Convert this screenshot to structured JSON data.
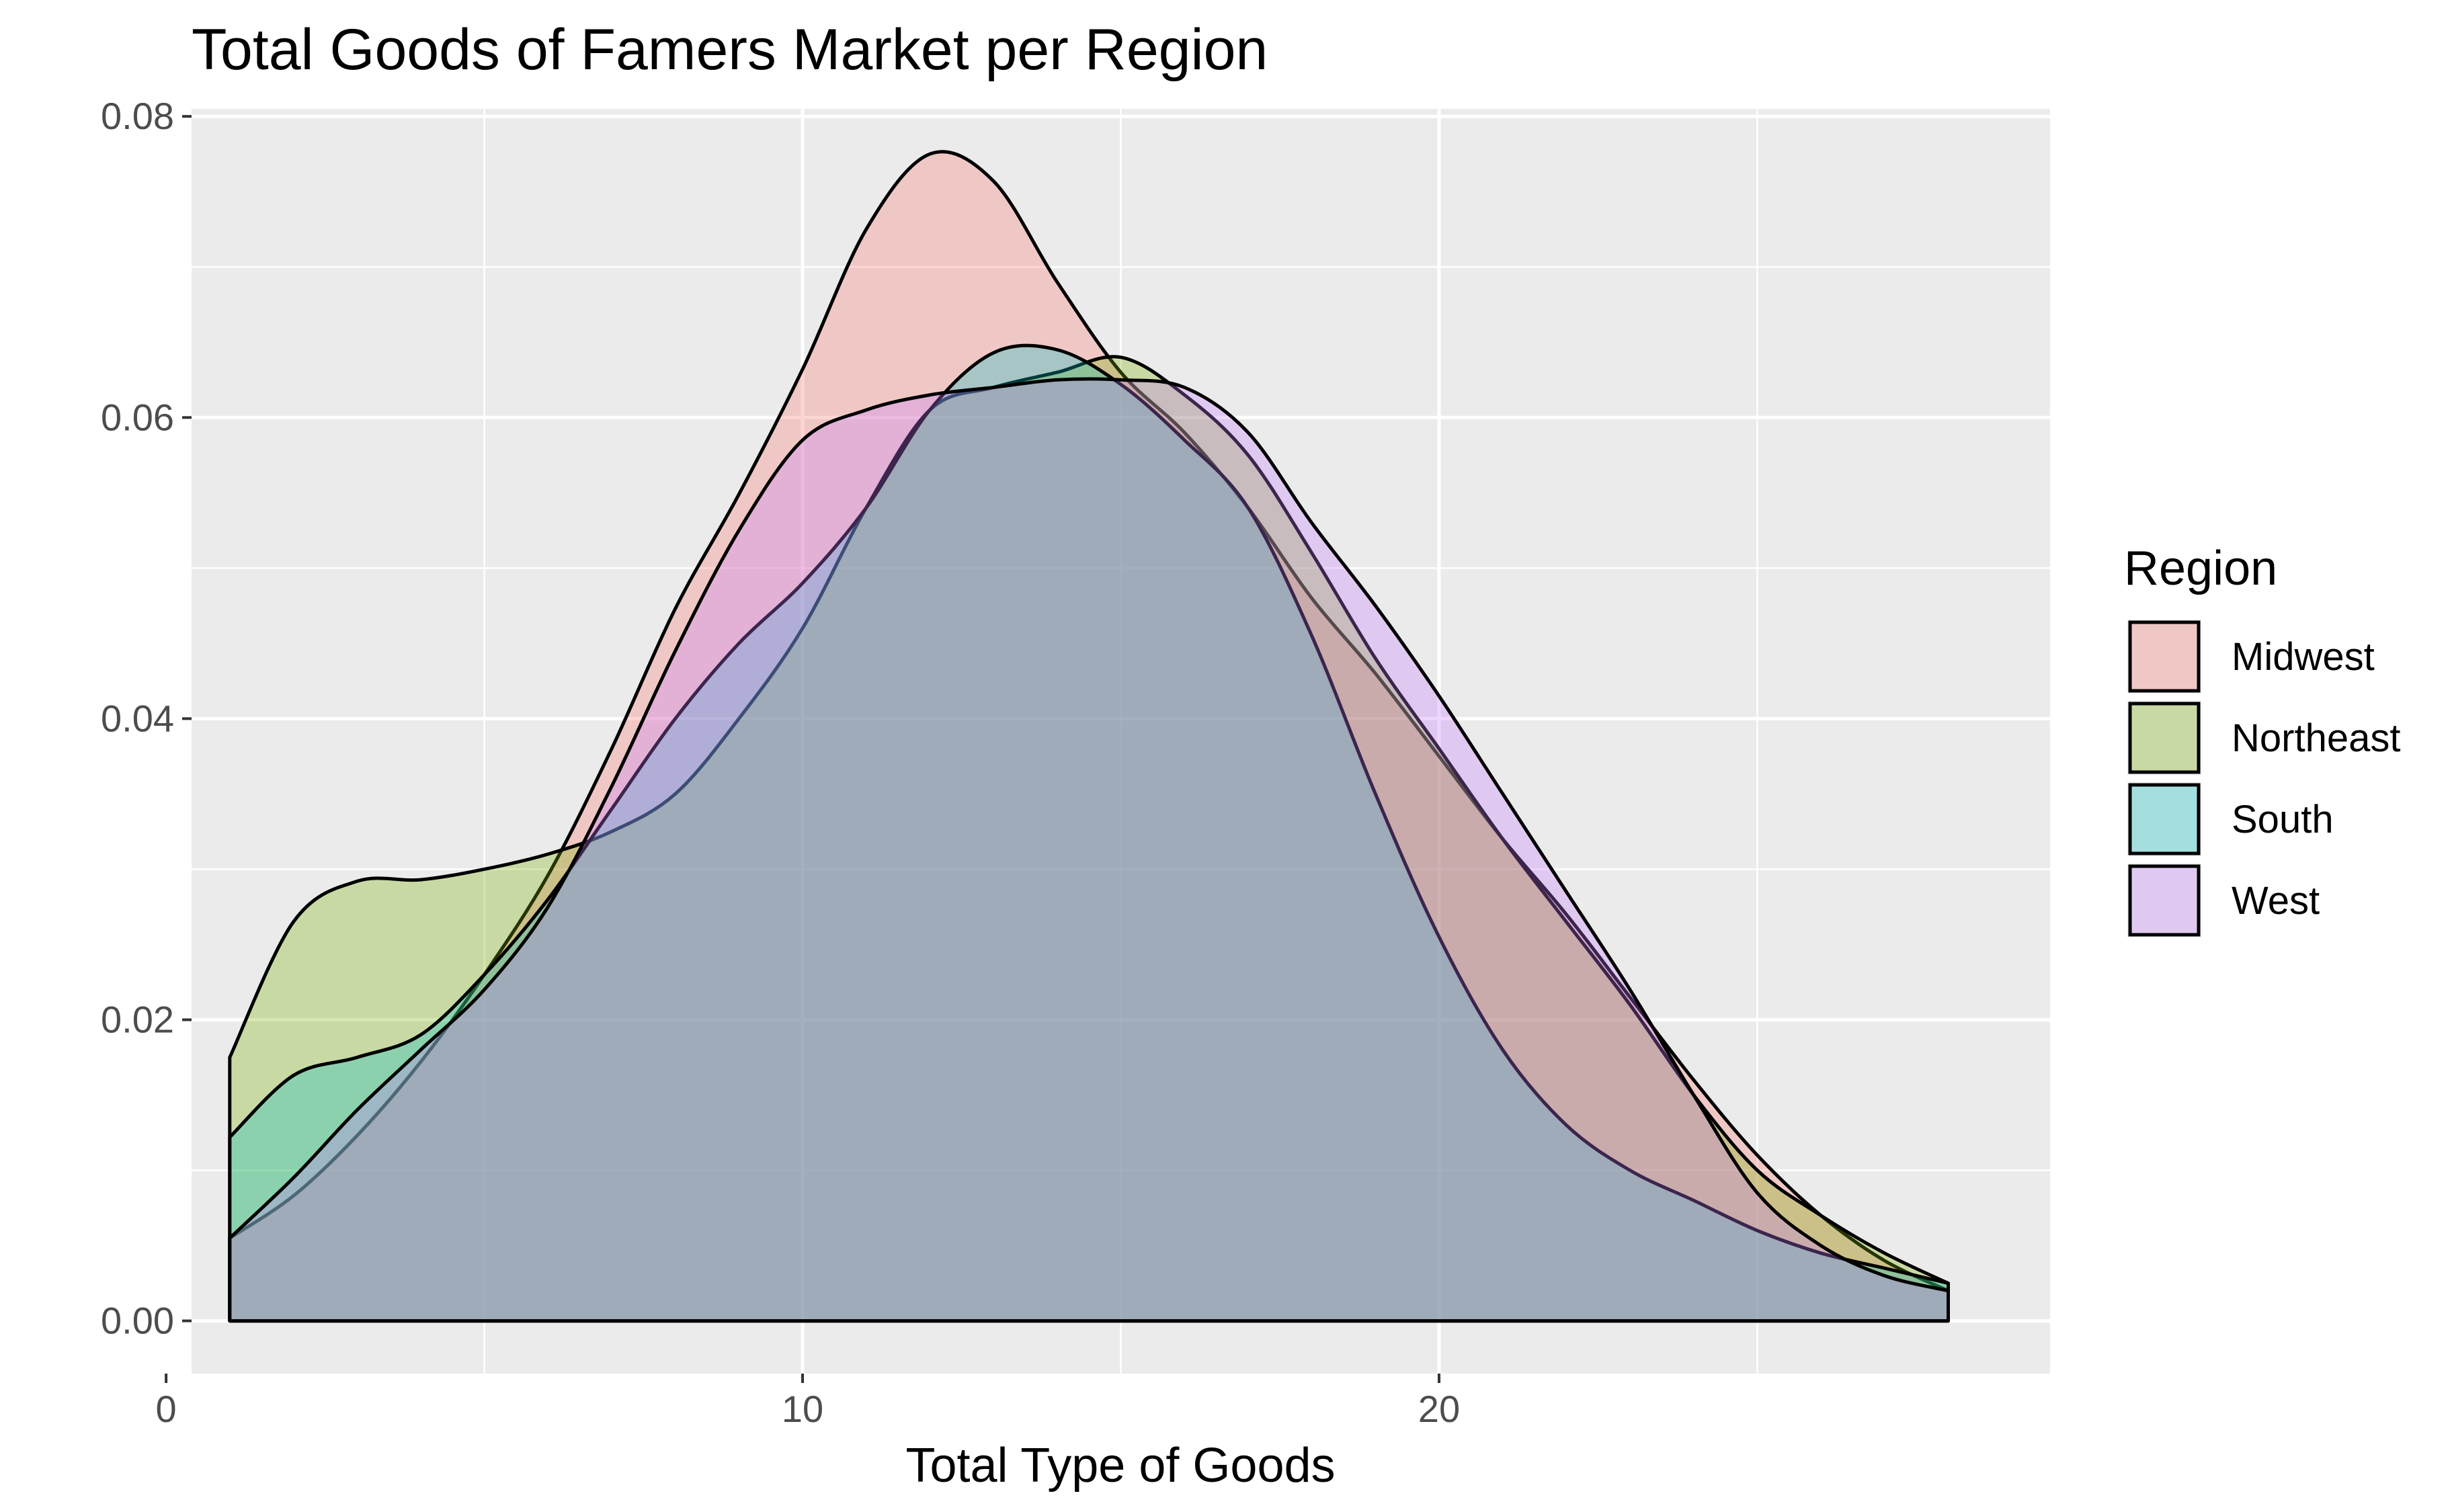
{
  "chart_data": {
    "type": "area",
    "subtype": "density",
    "title": "Total Goods of Famers Market per Region",
    "xlabel": "Total Type of Goods",
    "ylabel": "",
    "xlim": [
      0.4,
      29.6
    ],
    "ylim": [
      -0.0035,
      0.0805
    ],
    "x_ticks": [
      0,
      10,
      20
    ],
    "x_tick_labels": [
      "0",
      "10",
      "20"
    ],
    "x_minor_ticks": [
      5,
      15,
      25
    ],
    "y_ticks": [
      0,
      0.02,
      0.04,
      0.06,
      0.08
    ],
    "y_tick_labels": [
      "0.00",
      "0.02",
      "0.04",
      "0.06",
      "0.08"
    ],
    "y_minor_ticks": [
      0.01,
      0.03,
      0.05,
      0.07
    ],
    "grid": true,
    "panel_background": "#ebebeb",
    "grid_color": "#ffffff",
    "fill_alpha": 0.3,
    "legend": {
      "title": "Region",
      "position": "right"
    },
    "series": [
      {
        "name": "Midwest",
        "color": "#F8766D",
        "x": [
          1,
          2,
          3,
          4,
          5,
          6,
          7,
          8,
          9,
          10,
          11,
          12,
          13,
          14,
          15,
          16,
          17,
          18,
          19,
          20,
          21,
          22,
          23,
          24,
          25,
          26,
          27,
          28
        ],
        "y": [
          0.0055,
          0.0083,
          0.0123,
          0.0172,
          0.023,
          0.0296,
          0.038,
          0.0473,
          0.0549,
          0.0632,
          0.0725,
          0.0775,
          0.0757,
          0.069,
          0.063,
          0.059,
          0.054,
          0.048,
          0.043,
          0.0375,
          0.032,
          0.027,
          0.0215,
          0.016,
          0.011,
          0.007,
          0.004,
          0.002
        ]
      },
      {
        "name": "Northeast",
        "color": "#7CAE00",
        "x": [
          1,
          2,
          3,
          4,
          5,
          6,
          7,
          8,
          9,
          10,
          11,
          12,
          13,
          14,
          15,
          16,
          17,
          18,
          19,
          20,
          21,
          22,
          23,
          24,
          25,
          26,
          27,
          28
        ],
        "y": [
          0.0175,
          0.0265,
          0.0292,
          0.0293,
          0.03,
          0.031,
          0.0325,
          0.035,
          0.04,
          0.046,
          0.054,
          0.0605,
          0.062,
          0.063,
          0.064,
          0.0615,
          0.0575,
          0.051,
          0.044,
          0.038,
          0.032,
          0.0265,
          0.021,
          0.015,
          0.01,
          0.007,
          0.0045,
          0.0025
        ]
      },
      {
        "name": "South",
        "color": "#00BFC4",
        "x": [
          1,
          2,
          3,
          4,
          5,
          6,
          7,
          8,
          9,
          10,
          11,
          12,
          13,
          14,
          15,
          16,
          17,
          18,
          19,
          20,
          21,
          22,
          23,
          24,
          25,
          26,
          27,
          28
        ],
        "y": [
          0.0122,
          0.0163,
          0.0175,
          0.019,
          0.023,
          0.028,
          0.034,
          0.04,
          0.045,
          0.049,
          0.054,
          0.0605,
          0.0643,
          0.0645,
          0.0622,
          0.0585,
          0.054,
          0.0455,
          0.035,
          0.0255,
          0.018,
          0.013,
          0.01,
          0.008,
          0.006,
          0.0045,
          0.0035,
          0.0025
        ]
      },
      {
        "name": "West",
        "color": "#C77CFF",
        "x": [
          1,
          2,
          3,
          4,
          5,
          6,
          7,
          8,
          9,
          10,
          11,
          12,
          13,
          14,
          15,
          16,
          17,
          18,
          19,
          20,
          21,
          22,
          23,
          24,
          25,
          26,
          27,
          28
        ],
        "y": [
          0.0055,
          0.0095,
          0.014,
          0.018,
          0.022,
          0.0275,
          0.0355,
          0.0445,
          0.0525,
          0.0585,
          0.0605,
          0.0615,
          0.062,
          0.0625,
          0.0625,
          0.062,
          0.059,
          0.053,
          0.0475,
          0.0415,
          0.035,
          0.0285,
          0.022,
          0.015,
          0.0085,
          0.005,
          0.003,
          0.002
        ]
      }
    ]
  }
}
